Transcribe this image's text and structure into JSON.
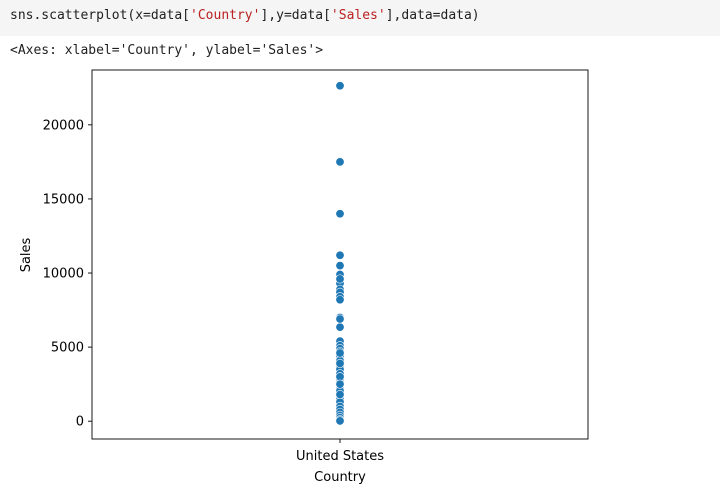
{
  "code": {
    "prefix": "sns.scatterplot(x=data[",
    "arg1": "'Country'",
    "middle": "],y=data[",
    "arg2": "'Sales'",
    "suffix": "],data=data)"
  },
  "output_text": "<Axes: xlabel='Country', ylabel='Sales'>",
  "colors": {
    "point": "#1f77b4",
    "point_edge": "#ffffff",
    "axis": "#000000"
  },
  "chart_data": {
    "type": "scatter",
    "xlabel": "Country",
    "ylabel": "Sales",
    "categories": [
      "United States"
    ],
    "ylim": [
      -1200,
      23700
    ],
    "yticks": [
      0,
      5000,
      10000,
      15000,
      20000
    ],
    "ytick_labels": [
      "0",
      "5000",
      "10000",
      "15000",
      "20000"
    ],
    "grid": false,
    "series": [
      {
        "x": [
          "United States",
          "United States",
          "United States",
          "United States",
          "United States",
          "United States",
          "United States",
          "United States",
          "United States",
          "United States",
          "United States",
          "United States",
          "United States",
          "United States",
          "United States",
          "United States",
          "United States",
          "United States",
          "United States",
          "United States",
          "United States",
          "United States",
          "United States",
          "United States",
          "United States",
          "United States",
          "United States",
          "United States",
          "United States",
          "United States",
          "United States",
          "United States",
          "United States",
          "United States",
          "United States",
          "United States",
          "United States",
          "United States",
          "United States",
          "United States",
          "United States",
          "United States",
          "United States"
        ],
        "y": [
          22638,
          17500,
          14000,
          11200,
          10500,
          9900,
          9300,
          8900,
          8700,
          8400,
          8200,
          7000,
          6350,
          5400,
          5100,
          4900,
          4700,
          4400,
          4100,
          3700,
          3500,
          3200,
          3000,
          2800,
          2600,
          2200,
          2050,
          1500,
          1300,
          1000,
          800,
          600,
          400,
          250,
          100,
          20,
          3000,
          2500,
          1800,
          3900,
          4600,
          6900,
          9600
        ]
      }
    ]
  }
}
